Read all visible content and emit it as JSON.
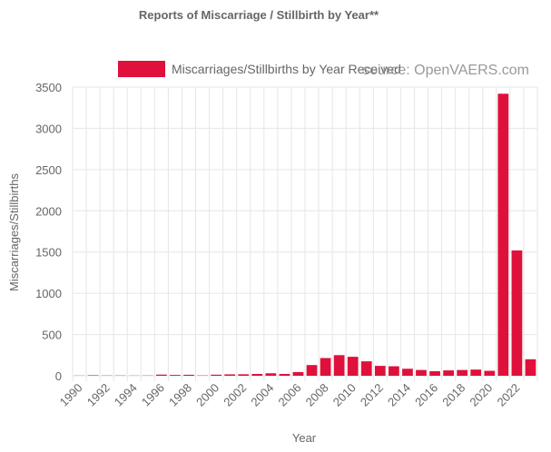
{
  "chart_data": {
    "type": "bar",
    "title": "Reports of Miscarriage / Stillbirth by Year**",
    "xlabel": "Year",
    "ylabel": "Miscarriages/Stillbirths",
    "ylim": [
      0,
      3500
    ],
    "y_ticks": [
      0,
      500,
      1000,
      1500,
      2000,
      2500,
      3000,
      3500
    ],
    "x_tick_labels": [
      "1990",
      "1992",
      "1994",
      "1996",
      "1998",
      "2000",
      "2002",
      "2004",
      "2006",
      "2008",
      "2010",
      "2012",
      "2014",
      "2016",
      "2018",
      "2020",
      "2022"
    ],
    "grid": true,
    "legend_position": "top",
    "categories": [
      "1990",
      "1991",
      "1992",
      "1993",
      "1994",
      "1995",
      "1996",
      "1997",
      "1998",
      "1999",
      "2000",
      "2001",
      "2002",
      "2003",
      "2004",
      "2005",
      "2006",
      "2007",
      "2008",
      "2009",
      "2010",
      "2011",
      "2012",
      "2013",
      "2014",
      "2015",
      "2016",
      "2017",
      "2018",
      "2019",
      "2020",
      "2021",
      "2022",
      "2023"
    ],
    "series": [
      {
        "name": "Miscarriages/Stillbirths by Year Received",
        "color": "#e0103c",
        "values": [
          2,
          6,
          3,
          3,
          2,
          3,
          14,
          10,
          12,
          4,
          13,
          17,
          18,
          22,
          30,
          22,
          45,
          130,
          215,
          250,
          230,
          175,
          120,
          115,
          85,
          70,
          55,
          65,
          70,
          75,
          60,
          3420,
          1520,
          200
        ]
      }
    ]
  },
  "watermark": "source: OpenVAERS.com"
}
